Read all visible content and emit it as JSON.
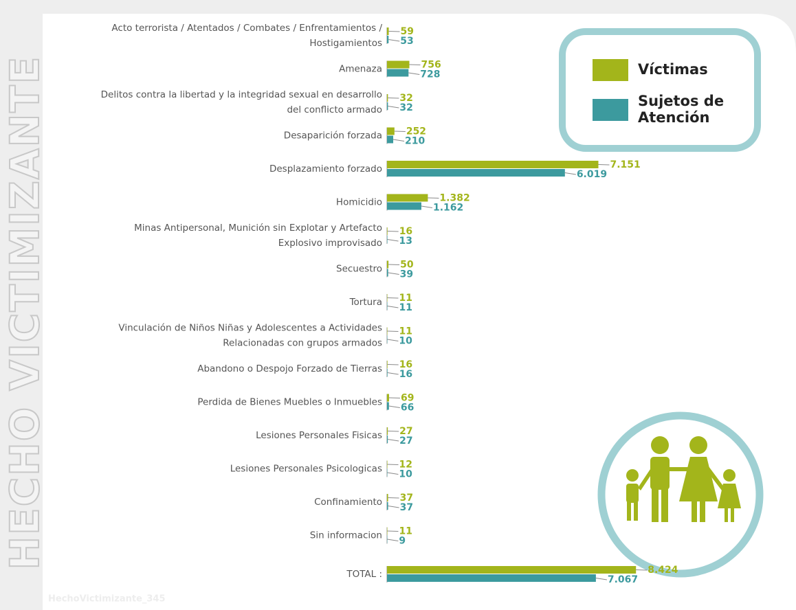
{
  "chart_data": {
    "type": "bar",
    "orientation": "horizontal",
    "side_title": "HECHO VICTIMIZANTE",
    "watermark": "HechoVictimizante_345",
    "categories": [
      [
        "Acto terrorista / Atentados / Combates / Enfrentamientos /",
        "Hostigamientos"
      ],
      [
        "Amenaza"
      ],
      [
        "Delitos contra la libertad y la integridad sexual en desarrollo",
        "del conflicto armado"
      ],
      [
        "Desaparición forzada"
      ],
      [
        "Desplazamiento forzado"
      ],
      [
        "Homicidio"
      ],
      [
        "Minas Antipersonal, Munición sin Explotar y Artefacto",
        "Explosivo improvisado"
      ],
      [
        "Secuestro"
      ],
      [
        "Tortura"
      ],
      [
        "Vinculación de Niños Niñas y Adolescentes a Actividades",
        "Relacionadas con grupos armados"
      ],
      [
        "Abandono o Despojo Forzado de Tierras"
      ],
      [
        "Perdida de Bienes Muebles o Inmuebles"
      ],
      [
        "Lesiones Personales Fisicas"
      ],
      [
        "Lesiones Personales Psicologicas"
      ],
      [
        "Confinamiento"
      ],
      [
        "Sin informacion"
      ],
      [
        "TOTAL :"
      ]
    ],
    "series": [
      {
        "name": "Víctimas",
        "color": "#a3b51b",
        "values": [
          59,
          756,
          32,
          252,
          7151,
          1382,
          16,
          50,
          11,
          11,
          16,
          69,
          27,
          12,
          37,
          11,
          8424
        ],
        "value_labels": [
          "59",
          "756",
          "32",
          "252",
          "7.151",
          "1.382",
          "16",
          "50",
          "11",
          "11",
          "16",
          "69",
          "27",
          "12",
          "37",
          "11",
          "8.424"
        ]
      },
      {
        "name": "Sujetos de Atención",
        "color": "#3c9a9e",
        "values": [
          53,
          728,
          32,
          210,
          6019,
          1162,
          13,
          39,
          11,
          10,
          16,
          66,
          27,
          10,
          37,
          9,
          7067
        ],
        "value_labels": [
          "53",
          "728",
          "32",
          "210",
          "6.019",
          "1.162",
          "13",
          "39",
          "11",
          "10",
          "16",
          "66",
          "27",
          "10",
          "37",
          "9",
          "7.067"
        ]
      }
    ],
    "xlim": [
      0,
      10000
    ]
  }
}
